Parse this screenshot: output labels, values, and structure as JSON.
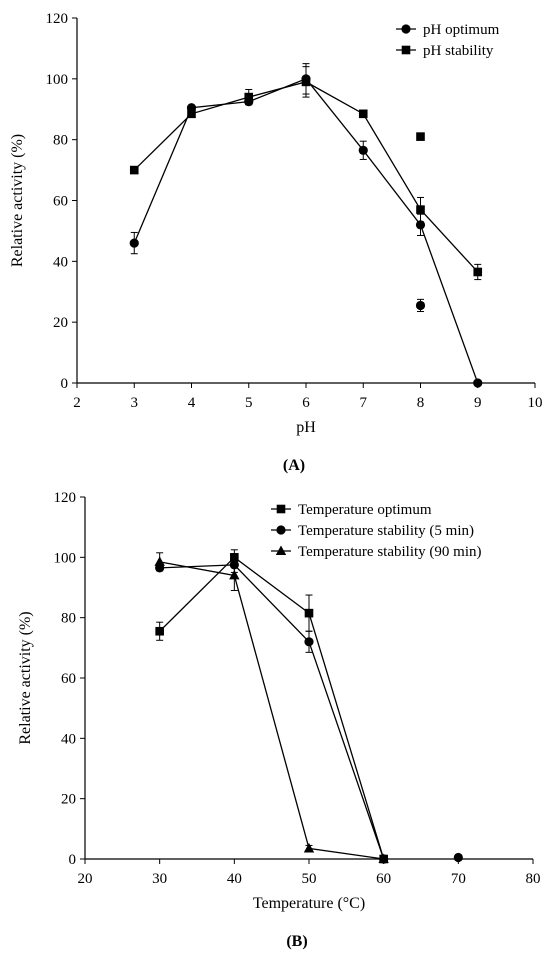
{
  "chart_data": [
    {
      "type": "line",
      "panel_label": "(A)",
      "xlabel": "pH",
      "ylabel": "Relative activity (%)",
      "xlim": [
        2,
        10
      ],
      "ylim": [
        0,
        120
      ],
      "x_ticks": [
        2,
        3,
        4,
        5,
        6,
        7,
        8,
        9,
        10
      ],
      "y_ticks": [
        0,
        20,
        40,
        60,
        80,
        100,
        120
      ],
      "grid": false,
      "legend_position": "top-right",
      "series": [
        {
          "name": "pH optimum",
          "marker": "circle",
          "x": [
            3,
            4,
            5,
            6,
            7,
            8,
            9
          ],
          "y": [
            46,
            90.5,
            92.5,
            100,
            76.5,
            52,
            0
          ],
          "err": [
            3.5,
            0,
            1,
            5,
            3,
            3.5,
            0
          ]
        },
        {
          "name": "pH stability",
          "marker": "square",
          "x": [
            3,
            4,
            5,
            6,
            7,
            8,
            9
          ],
          "y": [
            70,
            88.5,
            94,
            99,
            88.5,
            57,
            36.5
          ],
          "err": [
            0,
            0,
            2.5,
            5,
            0,
            4,
            2.5
          ]
        }
      ],
      "extra_points": [
        {
          "marker": "circle",
          "x": 8,
          "y": 25.5,
          "err": 2
        },
        {
          "marker": "square",
          "x": 8,
          "y": 81,
          "err": 0
        }
      ]
    },
    {
      "type": "line",
      "panel_label": "(B)",
      "xlabel": "Temperature (°C)",
      "ylabel": "Relative activity (%)",
      "xlim": [
        20,
        80
      ],
      "ylim": [
        0,
        120
      ],
      "x_ticks": [
        20,
        30,
        40,
        50,
        60,
        70,
        80
      ],
      "y_ticks": [
        0,
        20,
        40,
        60,
        80,
        100,
        120
      ],
      "grid": false,
      "legend_position": "top-right",
      "series": [
        {
          "name": "Temperature optimum",
          "marker": "square",
          "x": [
            30,
            40,
            50,
            60
          ],
          "y": [
            75.5,
            100,
            81.5,
            0
          ],
          "err": [
            3,
            2.5,
            6,
            0
          ]
        },
        {
          "name": "Temperature stability (5 min)",
          "marker": "circle",
          "x": [
            30,
            40,
            50,
            60
          ],
          "y": [
            96.5,
            97.5,
            72,
            0
          ],
          "err": [
            0,
            2.5,
            3.5,
            0
          ]
        },
        {
          "name": "Temperature stability (90 min)",
          "marker": "triangle",
          "x": [
            30,
            40,
            50,
            60
          ],
          "y": [
            98.5,
            94,
            3.5,
            0
          ],
          "err": [
            3,
            5,
            1,
            0
          ]
        }
      ],
      "extra_points": [
        {
          "marker": "circle",
          "x": 70,
          "y": 0.5,
          "err": 0
        }
      ]
    }
  ]
}
